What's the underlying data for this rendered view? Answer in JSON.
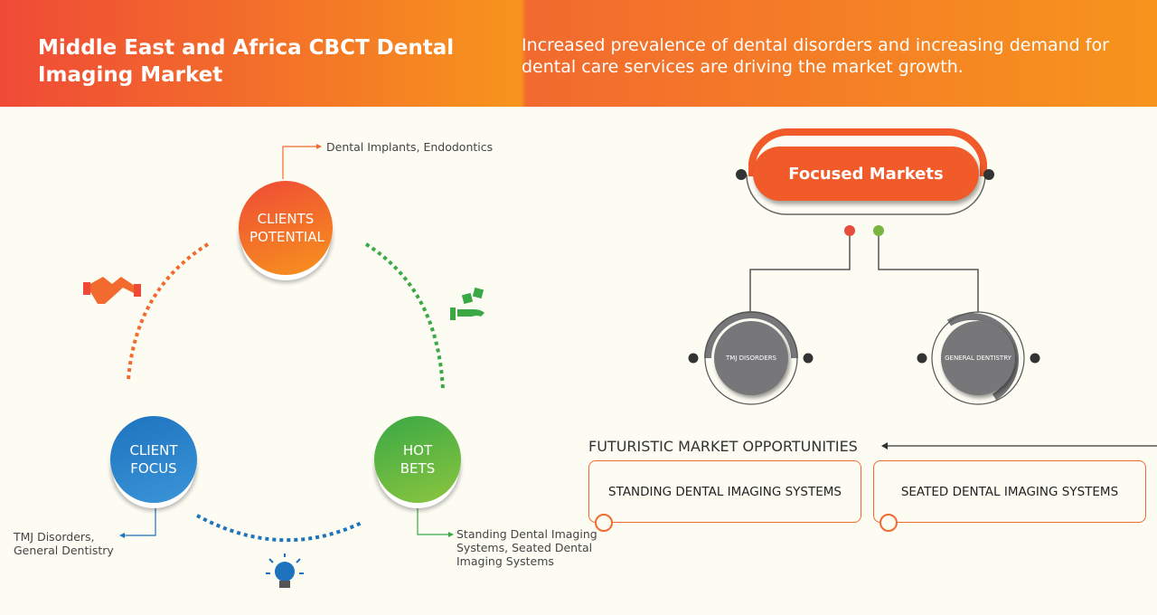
{
  "header": {
    "title": "Middle East and Africa CBCT Dental Imaging Market",
    "subtitle": "Increased prevalence of dental disorders and increasing demand for dental care services are driving the market growth."
  },
  "cycle": {
    "clients_potential": {
      "label": "CLIENTS POTENTIAL",
      "note": "Dental Implants, Endodontics",
      "color": "#f15a29"
    },
    "client_focus": {
      "label": "CLIENT FOCUS",
      "note": "TMJ Disorders, General Dentistry",
      "color": "#1e73be"
    },
    "hot_bets": {
      "label": "HOT BETS",
      "note": "Standing Dental Imaging Systems, Seated Dental Imaging Systems",
      "color": "#39a845"
    },
    "icons": [
      "handshake-icon",
      "money-hand-icon",
      "lightbulb-icon"
    ]
  },
  "focused": {
    "title": "Focused Markets",
    "markets": [
      "TMJ DISORDERS",
      "GENERAL DENTISTRY"
    ]
  },
  "futuristic": {
    "title": "FUTURISTIC MARKET OPPORTUNITIES",
    "items": [
      "STANDING DENTAL IMAGING SYSTEMS",
      "SEATED DENTAL IMAGING SYSTEMS"
    ]
  }
}
